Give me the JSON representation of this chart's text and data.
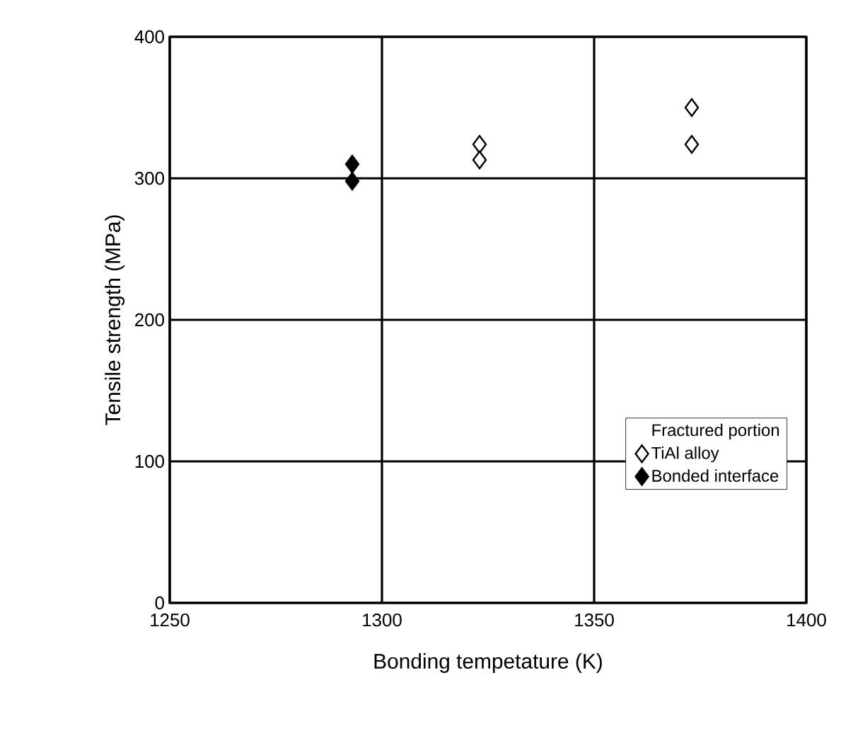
{
  "chart_data": {
    "type": "scatter",
    "xlabel": "Bonding tempetature (K)",
    "ylabel": "Tensile strength (MPa)",
    "legend_title": "Fractured portion",
    "xlim": [
      1250,
      1400
    ],
    "ylim": [
      0,
      400
    ],
    "xticks": [
      1250,
      1300,
      1350,
      1400
    ],
    "yticks": [
      0,
      100,
      200,
      300,
      400
    ],
    "grid": true,
    "legend": "bottom right",
    "marker": "diamond",
    "series": [
      {
        "name": "TiAl alloy",
        "color": "#ffffff",
        "x": [
          1323,
          1323,
          1373,
          1373
        ],
        "values": [
          324,
          313,
          350,
          324
        ]
      },
      {
        "name": "Bonded interface",
        "color": "#000000",
        "x": [
          1293,
          1293
        ],
        "values": [
          310,
          298
        ]
      }
    ]
  }
}
